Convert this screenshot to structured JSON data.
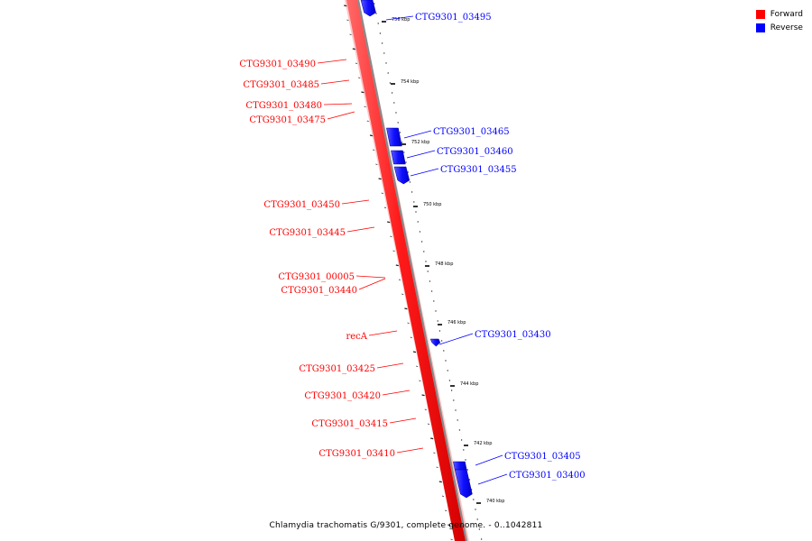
{
  "legend": {
    "items": [
      {
        "label": "Forward",
        "color": "#ff0000"
      },
      {
        "label": "Reverse",
        "color": "#0000ff"
      }
    ]
  },
  "footer": {
    "caption": "Chlamydia trachomatis G/9301, complete genome. - 0..1042811"
  },
  "colors": {
    "forward": "#ff0000",
    "reverse": "#0000ff",
    "forward_dark": "#cc0000"
  },
  "kbp_labels": [
    "756 kbp",
    "754 kbp",
    "752 kbp",
    "750 kbp",
    "748 kbp",
    "746 kbp",
    "744 kbp",
    "742 kbp",
    "740 kbp"
  ],
  "forward_genes": [
    "CTG9301_03490",
    "CTG9301_03485",
    "CTG9301_03480",
    "CTG9301_03475",
    "CTG9301_03450",
    "CTG9301_03445",
    "CTG9301_00005",
    "CTG9301_03440",
    "recA",
    "CTG9301_03425",
    "CTG9301_03420",
    "CTG9301_03415",
    "CTG9301_03410"
  ],
  "reverse_genes": [
    "CTG9301_03495",
    "CTG9301_03465",
    "CTG9301_03460",
    "CTG9301_03455",
    "CTG9301_03430",
    "CTG9301_03405",
    "CTG9301_03400"
  ]
}
